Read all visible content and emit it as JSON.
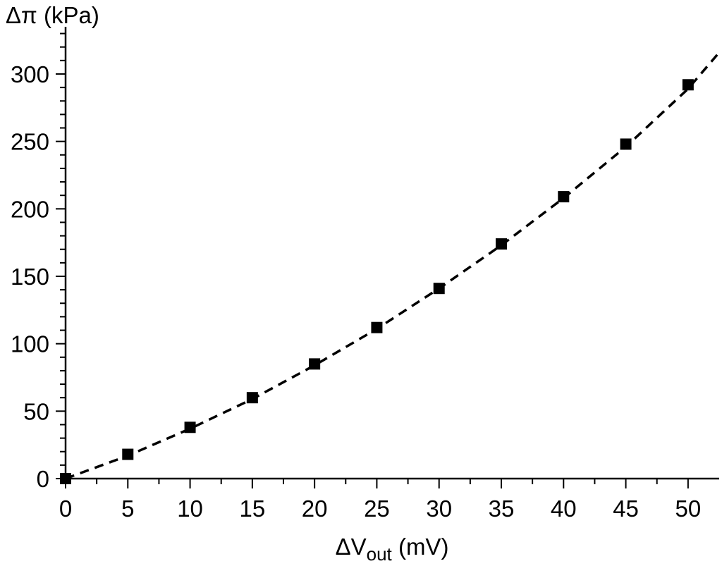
{
  "chart_data": {
    "type": "scatter",
    "title": "",
    "xlabel": {
      "prefix": "ΔV",
      "subscript": "out",
      "suffix": " (mV)"
    },
    "ylabel": "Δπ (kPa)",
    "xlim": [
      0,
      52.5
    ],
    "ylim": [
      0,
      335
    ],
    "x_ticks": [
      0,
      5,
      10,
      15,
      20,
      25,
      30,
      35,
      40,
      45,
      50
    ],
    "y_ticks": [
      0,
      50,
      100,
      150,
      200,
      250,
      300
    ],
    "grid": false,
    "legend": "none",
    "series": [
      {
        "marker": "square",
        "color": "#000000",
        "x": [
          0,
          5,
          10,
          15,
          20,
          25,
          30,
          35,
          40,
          45,
          50
        ],
        "y": [
          0,
          18,
          38,
          60,
          85,
          112,
          141,
          174,
          209,
          248,
          292
        ]
      }
    ],
    "fit": {
      "style": "dashed",
      "color": "#000000",
      "x": [
        0,
        5,
        10,
        15,
        20,
        25,
        30,
        35,
        40,
        45,
        50,
        52.5
      ],
      "y": [
        0,
        17,
        37,
        59,
        84,
        111,
        141,
        173,
        208,
        246,
        289,
        316
      ]
    }
  }
}
